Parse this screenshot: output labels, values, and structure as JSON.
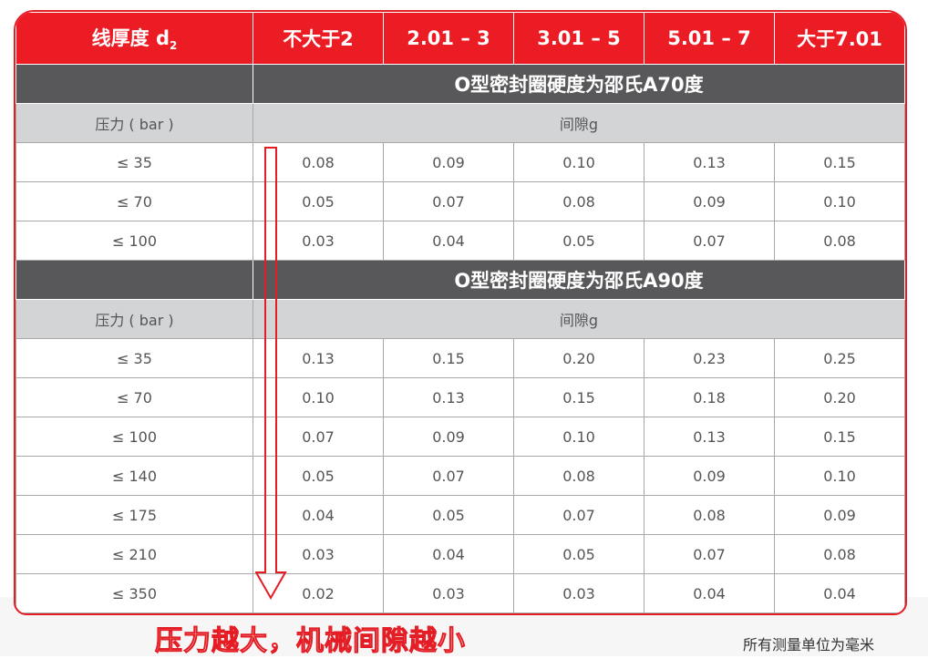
{
  "header": {
    "label": "线厚度 d",
    "sub": "2",
    "columns": [
      "不大于2",
      "2.01 – 3",
      "3.01 – 5",
      "5.01 – 7",
      "大于7.01"
    ]
  },
  "sections": [
    {
      "title": "O型密封圈硬度为邵氏A70度",
      "pressure_label": "压力 ( bar )",
      "gap_label": "间隙g",
      "rows": [
        {
          "p": "≤ 35",
          "v": [
            "0.08",
            "0.09",
            "0.10",
            "0.13",
            "0.15"
          ]
        },
        {
          "p": "≤ 70",
          "v": [
            "0.05",
            "0.07",
            "0.08",
            "0.09",
            "0.10"
          ]
        },
        {
          "p": "≤ 100",
          "v": [
            "0.03",
            "0.04",
            "0.05",
            "0.07",
            "0.08"
          ]
        }
      ]
    },
    {
      "title": "O型密封圈硬度为邵氏A90度",
      "pressure_label": "压力 ( bar )",
      "gap_label": "间隙g",
      "rows": [
        {
          "p": "≤ 35",
          "v": [
            "0.13",
            "0.15",
            "0.20",
            "0.23",
            "0.25"
          ]
        },
        {
          "p": "≤ 70",
          "v": [
            "0.10",
            "0.13",
            "0.15",
            "0.18",
            "0.20"
          ]
        },
        {
          "p": "≤ 100",
          "v": [
            "0.07",
            "0.09",
            "0.10",
            "0.13",
            "0.15"
          ]
        },
        {
          "p": "≤ 140",
          "v": [
            "0.05",
            "0.07",
            "0.08",
            "0.09",
            "0.10"
          ]
        },
        {
          "p": "≤ 175",
          "v": [
            "0.04",
            "0.05",
            "0.07",
            "0.08",
            "0.09"
          ]
        },
        {
          "p": "≤ 210",
          "v": [
            "0.03",
            "0.04",
            "0.05",
            "0.07",
            "0.08"
          ]
        },
        {
          "p": "≤ 350",
          "v": [
            "0.02",
            "0.03",
            "0.03",
            "0.04",
            "0.04"
          ]
        }
      ]
    }
  ],
  "annotation": "压力越大，机械间隙越小",
  "unit_note": "所有测量单位为毫米",
  "colors": {
    "accent": "#ec1c24",
    "dark": "#58585a",
    "gray": "#d3d4d6"
  }
}
